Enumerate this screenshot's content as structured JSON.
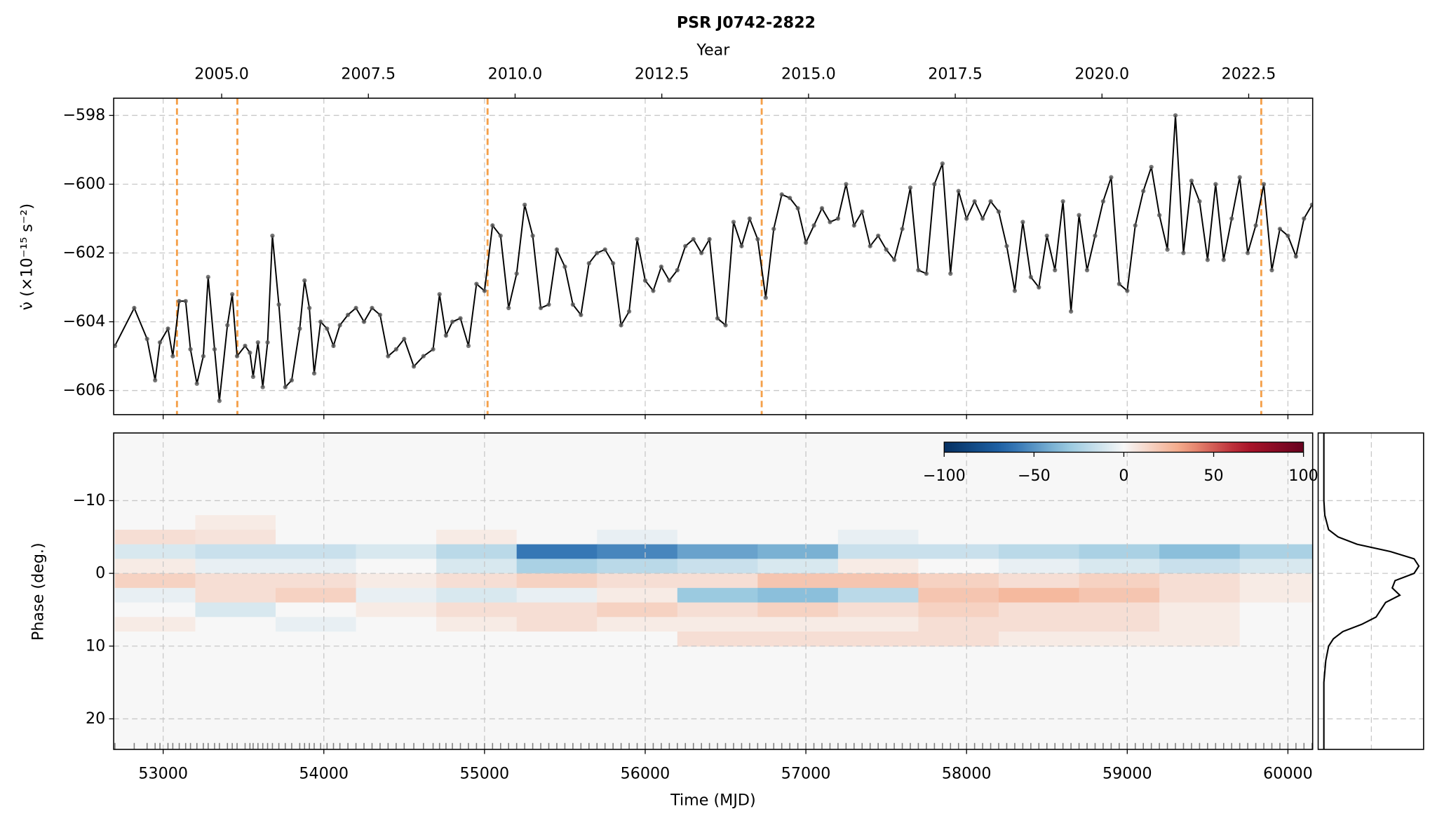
{
  "chart_data": [
    {
      "type": "line",
      "title": "PSR J0742-2822",
      "x2label": "Year",
      "ylabel": "ν̇ (×10⁻¹⁵ s⁻²)",
      "x": [
        52700,
        52820,
        52900,
        52950,
        52980,
        53030,
        53060,
        53100,
        53140,
        53170,
        53210,
        53250,
        53280,
        53320,
        53350,
        53400,
        53430,
        53460,
        53510,
        53540,
        53560,
        53590,
        53620,
        53650,
        53680,
        53720,
        53760,
        53800,
        53850,
        53880,
        53910,
        53940,
        53980,
        54020,
        54060,
        54100,
        54150,
        54200,
        54250,
        54300,
        54350,
        54400,
        54450,
        54500,
        54560,
        54620,
        54680,
        54720,
        54760,
        54800,
        54850,
        54900,
        54950,
        55000,
        55050,
        55100,
        55150,
        55200,
        55250,
        55300,
        55350,
        55400,
        55450,
        55500,
        55550,
        55600,
        55650,
        55700,
        55750,
        55800,
        55850,
        55900,
        55950,
        56000,
        56050,
        56100,
        56150,
        56200,
        56250,
        56300,
        56350,
        56400,
        56450,
        56500,
        56550,
        56600,
        56650,
        56700,
        56750,
        56800,
        56850,
        56900,
        56950,
        57000,
        57050,
        57100,
        57150,
        57200,
        57250,
        57300,
        57350,
        57400,
        57450,
        57500,
        57550,
        57600,
        57650,
        57700,
        57750,
        57800,
        57850,
        57900,
        57950,
        58000,
        58050,
        58100,
        58150,
        58200,
        58250,
        58300,
        58350,
        58400,
        58450,
        58500,
        58550,
        58600,
        58650,
        58700,
        58750,
        58800,
        58850,
        58900,
        58950,
        59000,
        59050,
        59100,
        59150,
        59200,
        59250,
        59300,
        59350,
        59400,
        59450,
        59500,
        59550,
        59600,
        59650,
        59700,
        59750,
        59800,
        59850,
        59900,
        59950,
        60000,
        60050,
        60100,
        60150
      ],
      "values": [
        -604.7,
        -603.6,
        -604.5,
        -605.7,
        -604.6,
        -604.2,
        -605.0,
        -603.4,
        -603.4,
        -604.8,
        -605.8,
        -605.0,
        -602.7,
        -604.8,
        -606.3,
        -604.1,
        -603.2,
        -605.0,
        -604.7,
        -604.9,
        -605.6,
        -604.6,
        -605.9,
        -604.6,
        -601.5,
        -603.5,
        -605.9,
        -605.7,
        -604.2,
        -602.8,
        -603.6,
        -605.5,
        -604.0,
        -604.2,
        -604.7,
        -604.1,
        -603.8,
        -603.6,
        -604.0,
        -603.6,
        -603.8,
        -605.0,
        -604.8,
        -604.5,
        -605.3,
        -605.0,
        -604.8,
        -603.2,
        -604.4,
        -604.0,
        -603.9,
        -604.7,
        -602.9,
        -603.1,
        -601.2,
        -601.5,
        -603.6,
        -602.6,
        -600.6,
        -601.5,
        -603.6,
        -603.5,
        -601.9,
        -602.4,
        -603.5,
        -603.8,
        -602.3,
        -602.0,
        -601.9,
        -602.3,
        -604.1,
        -603.7,
        -601.6,
        -602.8,
        -603.1,
        -602.4,
        -602.8,
        -602.5,
        -601.8,
        -601.6,
        -602.0,
        -601.6,
        -603.9,
        -604.1,
        -601.1,
        -601.8,
        -601.0,
        -601.6,
        -603.3,
        -601.3,
        -600.3,
        -600.4,
        -600.7,
        -601.7,
        -601.2,
        -600.7,
        -601.1,
        -601.0,
        -600.0,
        -601.2,
        -600.8,
        -601.8,
        -601.5,
        -601.9,
        -602.2,
        -601.3,
        -600.1,
        -602.5,
        -602.6,
        -600.0,
        -599.4,
        -602.6,
        -600.2,
        -601.0,
        -600.5,
        -601.0,
        -600.5,
        -600.8,
        -601.8,
        -603.1,
        -601.1,
        -602.7,
        -603.0,
        -601.5,
        -602.5,
        -600.5,
        -603.7,
        -600.9,
        -602.5,
        -601.5,
        -600.5,
        -599.8,
        -602.9,
        -603.1,
        -601.2,
        -600.2,
        -599.5,
        -600.9,
        -601.9,
        -598.0,
        -602.0,
        -599.9,
        -600.5,
        -602.2,
        -600.0,
        -602.2,
        -601.0,
        -599.8,
        -602.0,
        -601.2,
        -600.0,
        -602.5,
        -601.3,
        -601.5,
        -602.1,
        -601.0,
        -600.6
      ],
      "color": "#000000",
      "marker_color": "#555555",
      "xlim": [
        52692,
        60154
      ],
      "ylim": [
        -606.7,
        -597.5
      ],
      "xticks": [
        53000,
        54000,
        55000,
        56000,
        57000,
        58000,
        59000,
        60000
      ],
      "yticks": [
        {
          "value": -606,
          "label": "−606"
        },
        {
          "value": -604,
          "label": "−604"
        },
        {
          "value": -602,
          "label": "−602"
        },
        {
          "value": -600,
          "label": "−600"
        },
        {
          "value": -598,
          "label": "−598"
        }
      ],
      "x2lim": [
        2003.16,
        2023.59
      ],
      "x2ticks": [
        {
          "value": 2005,
          "label": "2005.0"
        },
        {
          "value": 2007.5,
          "label": "2007.5"
        },
        {
          "value": 2010,
          "label": "2010.0"
        },
        {
          "value": 2012.5,
          "label": "2012.5"
        },
        {
          "value": 2015,
          "label": "2015.0"
        },
        {
          "value": 2017.5,
          "label": "2017.5"
        },
        {
          "value": 2020,
          "label": "2020.0"
        },
        {
          "value": 2022.5,
          "label": "2022.5"
        }
      ],
      "glitches": [
        53086,
        53462,
        55019,
        56725,
        59834
      ],
      "glitch_color": "#f5a04a",
      "grid": true
    },
    {
      "type": "heatmap",
      "xlabel": "Time (MJD)",
      "ylabel": "Phase (deg.)",
      "xlim": [
        52692,
        60154
      ],
      "ylim": [
        -19.3,
        24.2
      ],
      "y_inverted": true,
      "xticks": [
        53000,
        54000,
        55000,
        56000,
        57000,
        58000,
        59000,
        60000
      ],
      "yticks": [
        {
          "value": -10,
          "label": "−10"
        },
        0,
        10,
        20
      ],
      "x_edges": [
        52700,
        53200,
        53700,
        54200,
        54700,
        55200,
        55700,
        56200,
        56700,
        57200,
        57700,
        58200,
        58700,
        59200,
        59700,
        60200
      ],
      "y_edges": [
        -8,
        -6,
        -4,
        -2,
        0,
        2,
        4,
        6,
        8,
        10
      ],
      "values": [
        [
          0,
          5,
          0,
          0,
          0,
          0,
          0,
          0,
          0,
          0,
          0,
          0,
          0,
          0,
          0
        ],
        [
          10,
          8,
          0,
          0,
          5,
          0,
          -5,
          0,
          0,
          -5,
          0,
          0,
          0,
          0,
          0
        ],
        [
          -10,
          -15,
          -15,
          -10,
          -20,
          -60,
          -55,
          -45,
          -40,
          -15,
          -15,
          -20,
          -25,
          -35,
          -25
        ],
        [
          5,
          -5,
          -5,
          0,
          -10,
          -25,
          -20,
          -15,
          -10,
          5,
          0,
          -5,
          -10,
          -15,
          -10
        ],
        [
          15,
          10,
          10,
          5,
          10,
          15,
          10,
          10,
          20,
          20,
          15,
          10,
          15,
          10,
          5
        ],
        [
          -5,
          10,
          15,
          -5,
          -10,
          -5,
          5,
          -30,
          -35,
          -20,
          20,
          25,
          20,
          10,
          5
        ],
        [
          0,
          -10,
          0,
          5,
          10,
          10,
          15,
          10,
          15,
          10,
          15,
          10,
          10,
          5,
          0
        ],
        [
          5,
          0,
          -5,
          0,
          5,
          10,
          5,
          5,
          5,
          5,
          10,
          10,
          10,
          5,
          0
        ],
        [
          0,
          0,
          0,
          0,
          0,
          0,
          0,
          10,
          10,
          10,
          10,
          5,
          5,
          5,
          0
        ]
      ],
      "colormap": "RdBu_r",
      "clim": [
        -100,
        100
      ],
      "colorbar_ticks": [
        {
          "value": -100,
          "label": "−100"
        },
        {
          "value": -50,
          "label": "−50"
        },
        0,
        50,
        100
      ],
      "rug_color": "#808080",
      "grid": true
    },
    {
      "type": "profile",
      "y": [
        -19.3,
        -10,
        -8,
        -6,
        -5,
        -4,
        -3,
        -2,
        -1,
        0,
        1,
        2,
        3,
        4,
        5,
        6,
        7,
        8,
        9,
        10,
        12,
        15,
        24.2
      ],
      "values": [
        0,
        0,
        0.01,
        0.05,
        0.15,
        0.35,
        0.7,
        0.95,
        1.0,
        0.95,
        0.75,
        0.72,
        0.8,
        0.65,
        0.6,
        0.55,
        0.4,
        0.2,
        0.1,
        0.05,
        0.02,
        0,
        0
      ],
      "xlim": [
        -0.06,
        1.05
      ],
      "ylim": [
        -19.3,
        24.2
      ],
      "xticks": [
        0,
        0.5
      ],
      "color": "#000000",
      "grid": true
    }
  ]
}
